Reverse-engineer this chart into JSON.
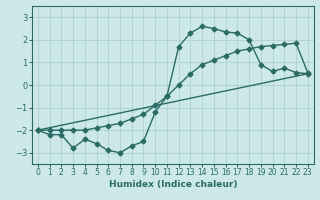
{
  "xlabel": "Humidex (Indice chaleur)",
  "background_color": "#cce8e8",
  "grid_color": "#aacccc",
  "line_color": "#2a6b65",
  "xlim": [
    -0.5,
    23.5
  ],
  "ylim": [
    -3.5,
    3.5
  ],
  "xticks": [
    0,
    1,
    2,
    3,
    4,
    5,
    6,
    7,
    8,
    9,
    10,
    11,
    12,
    13,
    14,
    15,
    16,
    17,
    18,
    19,
    20,
    21,
    22,
    23
  ],
  "yticks": [
    -3,
    -2,
    -1,
    0,
    1,
    2,
    3
  ],
  "series1_x": [
    0,
    1,
    2,
    3,
    4,
    5,
    6,
    7,
    8,
    9,
    10,
    11,
    12,
    13,
    14,
    15,
    16,
    17,
    18,
    19,
    20,
    21,
    22,
    23
  ],
  "series1_y": [
    -2.0,
    -2.2,
    -2.2,
    -2.8,
    -2.4,
    -2.6,
    -2.9,
    -3.0,
    -2.7,
    -2.5,
    -1.2,
    -0.5,
    1.7,
    2.3,
    2.6,
    2.5,
    2.35,
    2.3,
    2.0,
    0.9,
    0.6,
    0.75,
    0.55,
    0.5
  ],
  "series2_x": [
    0,
    1,
    2,
    3,
    4,
    5,
    6,
    7,
    8,
    9,
    10,
    11,
    12,
    13,
    14,
    15,
    16,
    17,
    18,
    19,
    20,
    21,
    22,
    23
  ],
  "series2_y": [
    -2.0,
    -2.0,
    -2.0,
    -2.0,
    -2.0,
    -1.9,
    -1.8,
    -1.7,
    -1.5,
    -1.3,
    -0.9,
    -0.5,
    0.0,
    0.5,
    0.9,
    1.1,
    1.3,
    1.5,
    1.6,
    1.7,
    1.75,
    1.8,
    1.85,
    0.55
  ],
  "series3_x": [
    0,
    23
  ],
  "series3_y": [
    -2.0,
    0.5
  ],
  "marker": "D",
  "markersize": 2.5,
  "linewidth": 1.0
}
